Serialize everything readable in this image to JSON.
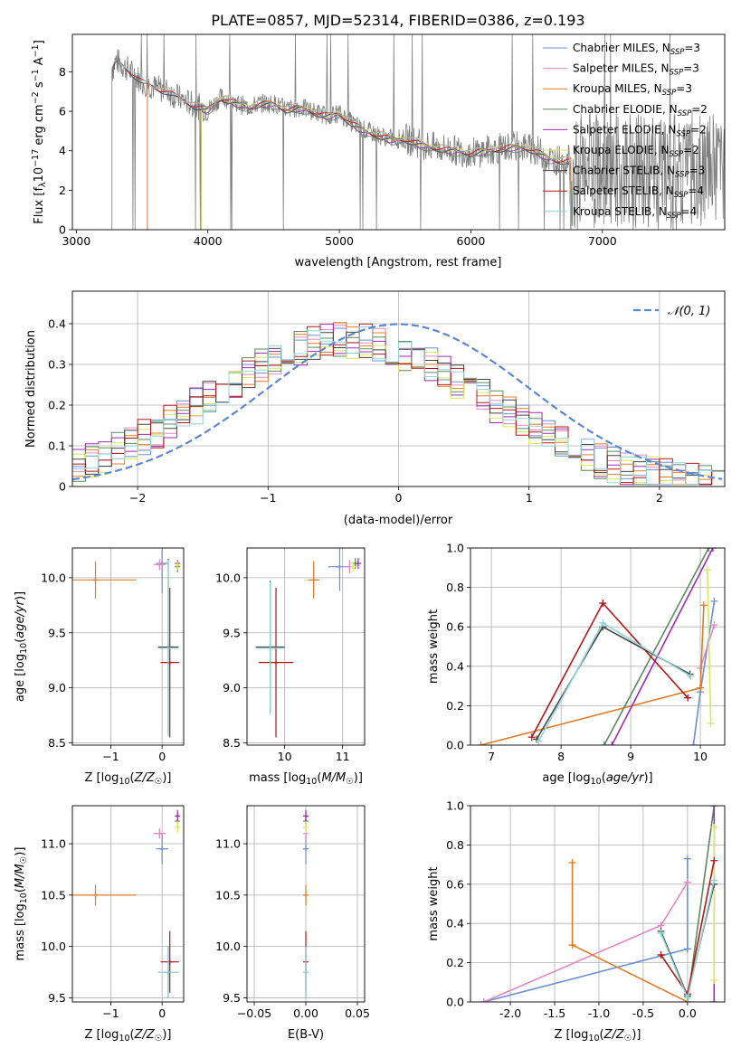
{
  "title": "PLATE=0857, MJD=52314, FIBERID=0386, z=0.193",
  "colors": {
    "Chabrier MILES": "#6a8fd6",
    "Salpeter MILES": "#e488c0",
    "Kroupa MILES": "#e07b28",
    "Chabrier ELODIE": "#5a8a5c",
    "Salpeter ELODIE": "#9c2bb0",
    "Kroupa ELODIE": "#d8e85a",
    "Chabrier STELIB": "#444444",
    "Salpeter STELIB": "#b01818",
    "Kroupa STELIB": "#8fd6d6",
    "data": "#7f7f7f",
    "gauss": "#5b87d6"
  },
  "chart_data": [
    {
      "id": "spectrum",
      "type": "line",
      "xlabel": "wavelength [Angstrom, rest frame]",
      "ylabel": "Flux [f_λ 10^-17 erg cm^-2 s^-1 A^-1]",
      "xlim": [
        2970,
        7930
      ],
      "ylim": [
        0,
        9.9
      ],
      "xticks": [
        3000,
        4000,
        5000,
        6000,
        7000
      ],
      "yticks": [
        0,
        2,
        4,
        6,
        8
      ],
      "legend_position": "top-right",
      "legend": [
        {
          "label": "Chabrier MILES, N_SSP=3",
          "main": "Chabrier MILES, N",
          "sub": "SSP",
          "tail": "=3"
        },
        {
          "label": "Salpeter MILES, N_SSP=3",
          "main": "Salpeter MILES, N",
          "sub": "SSP",
          "tail": "=3"
        },
        {
          "label": "Kroupa MILES, N_SSP=3",
          "main": "Kroupa MILES, N",
          "sub": "SSP",
          "tail": "=3"
        },
        {
          "label": "Chabrier ELODIE, N_SSP=2",
          "main": "Chabrier ELODIE, N",
          "sub": "SSP",
          "tail": "=2"
        },
        {
          "label": "Salpeter ELODIE, N_SSP=2",
          "main": "Salpeter ELODIE, N",
          "sub": "SSP",
          "tail": "=2"
        },
        {
          "label": "Kroupa ELODIE, N_SSP=2",
          "main": "Kroupa ELODIE, N",
          "sub": "SSP",
          "tail": "=2"
        },
        {
          "label": "Chabrier STELIB, N_SSP=3",
          "main": "Chabrier STELIB, N",
          "sub": "SSP",
          "tail": "=3"
        },
        {
          "label": "Salpeter STELIB, N_SSP=4",
          "main": "Salpeter STELIB, N",
          "sub": "SSP",
          "tail": "=4"
        },
        {
          "label": "Kroupa STELIB, N_SSP=4",
          "main": "Kroupa STELIB, N",
          "sub": "SSP",
          "tail": "=4"
        }
      ],
      "model_continuum_x": [
        3270,
        3300,
        3400,
        3500,
        3600,
        3700,
        3800,
        3900,
        4000,
        4100,
        4200,
        4300,
        4400,
        4500,
        4600,
        4700,
        4800,
        4900,
        5000,
        5100,
        5200,
        5300,
        5400,
        5500,
        5600,
        5700,
        5800,
        5900,
        6000,
        6100,
        6200,
        6300,
        6400,
        6500,
        6600,
        6700,
        6760
      ],
      "model_continuum_y": [
        8.0,
        8.6,
        8.1,
        7.5,
        7.2,
        7.0,
        6.6,
        6.3,
        6.1,
        6.7,
        6.5,
        6.2,
        6.4,
        6.4,
        6.1,
        6.2,
        6.0,
        5.8,
        5.9,
        5.4,
        5.0,
        4.8,
        4.6,
        4.6,
        4.4,
        4.2,
        4.1,
        4.0,
        3.9,
        4.0,
        4.1,
        4.2,
        4.2,
        4.0,
        3.6,
        3.5,
        3.5
      ],
      "model_start_x": {
        "MILES": 3540,
        "ELODIE": 3950,
        "STELIB": 3270
      }
    },
    {
      "id": "residual_hist",
      "type": "histogram",
      "xlabel": "(data-model)/error",
      "ylabel": "Normed distribution",
      "xlim": [
        -2.5,
        2.5
      ],
      "ylim": [
        0,
        0.48
      ],
      "xticks": [
        -2,
        -1,
        0,
        1,
        2
      ],
      "yticks": [
        0.0,
        0.1,
        0.2,
        0.3,
        0.4
      ],
      "legend_position": "top-right",
      "gauss_label": "N(0,1)",
      "gauss_label_main": "𝒩(0, 1)",
      "envelope_mean": -0.4,
      "envelope_sigma": 1.05,
      "envelope_peak": 0.36
    },
    {
      "id": "age_vs_Z",
      "type": "scatter",
      "xlabel": "Z [log10(Z/Z☉)]",
      "ylabel": "age [log10(age/yr)]",
      "xlim": [
        -1.75,
        0.42
      ],
      "ylim": [
        8.48,
        10.27
      ],
      "xticks": [
        -1,
        0
      ],
      "yticks": [
        8.5,
        9.0,
        9.5,
        10.0
      ],
      "points": [
        {
          "model": "Chabrier MILES",
          "x": 0.0,
          "y": 10.13,
          "xerr": 0.12,
          "yerr": 0.27
        },
        {
          "model": "Salpeter MILES",
          "x": -0.05,
          "y": 10.12,
          "xerr": 0.12,
          "yerr": 0.05
        },
        {
          "model": "Kroupa MILES",
          "x": -1.3,
          "y": 9.98,
          "xerr": 0.8,
          "yerr": 0.17
        },
        {
          "model": "Chabrier ELODIE",
          "x": 0.3,
          "y": 10.1,
          "xerr": 0.03,
          "yerr": 0.05
        },
        {
          "model": "Salpeter ELODIE",
          "x": 0.3,
          "y": 10.13,
          "xerr": 0.03,
          "yerr": 0.03
        },
        {
          "model": "Kroupa ELODIE",
          "x": 0.3,
          "y": 10.11,
          "xerr": 0.03,
          "yerr": 0.04
        },
        {
          "model": "Chabrier STELIB",
          "x": 0.12,
          "y": 9.37,
          "xerr": 0.2,
          "yerr": 0.8
        },
        {
          "model": "Salpeter STELIB",
          "x": 0.15,
          "y": 9.23,
          "xerr": 0.18,
          "yerr": 0.68
        },
        {
          "model": "Kroupa STELIB",
          "x": 0.12,
          "y": 9.36,
          "xerr": 0.2,
          "yerr": 0.8
        }
      ]
    },
    {
      "id": "age_vs_mass",
      "type": "scatter",
      "xlabel": "mass [log10(M/M☉)]",
      "ylabel": "",
      "xlim": [
        9.35,
        11.38
      ],
      "ylim": [
        8.48,
        10.27
      ],
      "xticks": [
        10,
        11
      ],
      "yticks": [
        8.5,
        9.0,
        9.5,
        10.0
      ],
      "points": [
        {
          "model": "Chabrier MILES",
          "x": 10.95,
          "y": 10.1,
          "xerr": 0.2,
          "yerr": 0.22
        },
        {
          "model": "Salpeter MILES",
          "x": 11.12,
          "y": 10.1,
          "xerr": 0.12,
          "yerr": 0.06
        },
        {
          "model": "Kroupa MILES",
          "x": 10.5,
          "y": 9.98,
          "xerr": 0.1,
          "yerr": 0.17
        },
        {
          "model": "Chabrier ELODIE",
          "x": 11.22,
          "y": 10.13,
          "xerr": 0.05,
          "yerr": 0.05
        },
        {
          "model": "Salpeter ELODIE",
          "x": 11.27,
          "y": 10.13,
          "xerr": 0.05,
          "yerr": 0.05
        },
        {
          "model": "Kroupa ELODIE",
          "x": 11.18,
          "y": 10.1,
          "xerr": 0.05,
          "yerr": 0.05
        },
        {
          "model": "Chabrier STELIB",
          "x": 9.75,
          "y": 9.37,
          "xerr": 0.25,
          "yerr": 0.6
        },
        {
          "model": "Salpeter STELIB",
          "x": 9.85,
          "y": 9.23,
          "xerr": 0.3,
          "yerr": 0.68
        },
        {
          "model": "Kroupa STELIB",
          "x": 9.75,
          "y": 9.36,
          "xerr": 0.25,
          "yerr": 0.6
        }
      ]
    },
    {
      "id": "massweight_vs_age",
      "type": "line",
      "xlabel": "age [log10(age/yr)]",
      "ylabel": "mass weight",
      "xlim": [
        6.7,
        10.35
      ],
      "ylim": [
        0,
        1.0
      ],
      "xticks": [
        7,
        8,
        9,
        10
      ],
      "yticks": [
        0.0,
        0.2,
        0.4,
        0.6,
        0.8,
        1.0
      ],
      "series": [
        {
          "model": "Chabrier MILES",
          "x": [
            9.9,
            10.0,
            10.2
          ],
          "y": [
            0.0,
            0.27,
            0.73
          ]
        },
        {
          "model": "Salpeter MILES",
          "x": [
            10.0,
            10.2
          ],
          "y": [
            0.39,
            0.61
          ]
        },
        {
          "model": "Kroupa MILES",
          "x": [
            6.85,
            10.0,
            10.0,
            10.05
          ],
          "y": [
            0.0,
            0.29,
            0.29,
            0.71
          ]
        },
        {
          "model": "Chabrier ELODIE",
          "x": [
            8.62,
            10.12
          ],
          "y": [
            0.0,
            1.0
          ]
        },
        {
          "model": "Salpeter ELODIE",
          "x": [
            8.73,
            10.18
          ],
          "y": [
            0.0,
            1.0
          ]
        },
        {
          "model": "Kroupa ELODIE",
          "x": [
            10.1,
            10.15
          ],
          "y": [
            0.89,
            0.11
          ]
        },
        {
          "model": "Chabrier STELIB",
          "x": [
            7.65,
            8.6,
            9.85
          ],
          "y": [
            0.03,
            0.6,
            0.36
          ]
        },
        {
          "model": "Salpeter STELIB",
          "x": [
            7.58,
            8.6,
            9.82
          ],
          "y": [
            0.04,
            0.72,
            0.24
          ]
        },
        {
          "model": "Kroupa STELIB",
          "x": [
            7.68,
            8.6,
            9.86
          ],
          "y": [
            0.02,
            0.62,
            0.35
          ]
        }
      ]
    },
    {
      "id": "mass_vs_Z",
      "type": "scatter",
      "xlabel": "Z [log10(Z/Z☉)]",
      "ylabel": "mass [log10(M/M☉)]",
      "xlim": [
        -1.75,
        0.42
      ],
      "ylim": [
        9.46,
        11.37
      ],
      "xticks": [
        -1,
        0
      ],
      "yticks": [
        9.5,
        10.0,
        10.5,
        11.0
      ],
      "points": [
        {
          "model": "Chabrier MILES",
          "x": 0.0,
          "y": 10.95,
          "xerr": 0.12,
          "yerr": 0.15
        },
        {
          "model": "Salpeter MILES",
          "x": -0.05,
          "y": 11.1,
          "xerr": 0.12,
          "yerr": 0.05
        },
        {
          "model": "Kroupa MILES",
          "x": -1.3,
          "y": 10.5,
          "xerr": 0.8,
          "yerr": 0.1
        },
        {
          "model": "Chabrier ELODIE",
          "x": 0.3,
          "y": 11.22,
          "xerr": 0.03,
          "yerr": 0.06
        },
        {
          "model": "Salpeter ELODIE",
          "x": 0.3,
          "y": 11.27,
          "xerr": 0.03,
          "yerr": 0.06
        },
        {
          "model": "Kroupa ELODIE",
          "x": 0.3,
          "y": 11.16,
          "xerr": 0.03,
          "yerr": 0.06
        },
        {
          "model": "Chabrier STELIB",
          "x": 0.12,
          "y": 9.75,
          "xerr": 0.2,
          "yerr": 0.25
        },
        {
          "model": "Salpeter STELIB",
          "x": 0.15,
          "y": 9.85,
          "xerr": 0.18,
          "yerr": 0.3
        },
        {
          "model": "Kroupa STELIB",
          "x": 0.12,
          "y": 9.75,
          "xerr": 0.2,
          "yerr": 0.25
        }
      ]
    },
    {
      "id": "mass_vs_ebv",
      "type": "scatter",
      "xlabel": "E(B-V)",
      "ylabel": "",
      "xlim": [
        -0.057,
        0.057
      ],
      "ylim": [
        9.46,
        11.37
      ],
      "xticks": [
        -0.05,
        0.0,
        0.05
      ],
      "xtick_labels": [
        "−0.05",
        "0.00",
        "0.05"
      ],
      "yticks": [
        9.5,
        10.0,
        10.5,
        11.0
      ],
      "points": [
        {
          "model": "Chabrier MILES",
          "x": 0.0,
          "y": 10.95,
          "yerr": 0.15
        },
        {
          "model": "Salpeter MILES",
          "x": 0.0,
          "y": 11.1,
          "yerr": 0.05
        },
        {
          "model": "Kroupa MILES",
          "x": 0.0,
          "y": 10.5,
          "yerr": 0.1
        },
        {
          "model": "Chabrier ELODIE",
          "x": 0.0,
          "y": 11.22,
          "yerr": 0.06
        },
        {
          "model": "Salpeter ELODIE",
          "x": 0.0,
          "y": 11.27,
          "yerr": 0.06
        },
        {
          "model": "Kroupa ELODIE",
          "x": 0.0,
          "y": 11.16,
          "yerr": 0.06
        },
        {
          "model": "Chabrier STELIB",
          "x": 0.0,
          "y": 9.75,
          "yerr": 0.25
        },
        {
          "model": "Salpeter STELIB",
          "x": 0.0,
          "y": 9.85,
          "yerr": 0.3
        },
        {
          "model": "Kroupa STELIB",
          "x": 0.0,
          "y": 9.75,
          "yerr": 0.25
        }
      ]
    },
    {
      "id": "massweight_vs_Z",
      "type": "line",
      "xlabel": "Z [log10(Z/Z☉)]",
      "ylabel": "mass weight",
      "xlim": [
        -2.45,
        0.42
      ],
      "ylim": [
        0,
        1.0
      ],
      "xticks": [
        -2.0,
        -1.5,
        -1.0,
        -0.5,
        0.0
      ],
      "yticks": [
        0.0,
        0.2,
        0.4,
        0.6,
        0.8,
        1.0
      ],
      "series": [
        {
          "model": "Chabrier MILES",
          "x": [
            -2.3,
            0.0,
            0.0,
            0.0
          ],
          "y": [
            0.0,
            0.27,
            0.27,
            0.73
          ]
        },
        {
          "model": "Salpeter MILES",
          "x": [
            -2.3,
            -0.3,
            0.0,
            0.0
          ],
          "y": [
            0.0,
            0.39,
            0.61,
            0.61
          ]
        },
        {
          "model": "Kroupa MILES",
          "x": [
            -1.3,
            -1.3,
            0.0
          ],
          "y": [
            0.71,
            0.29,
            0.0
          ]
        },
        {
          "model": "Chabrier ELODIE",
          "x": [
            0.0,
            0.3
          ],
          "y": [
            0.0,
            1.0
          ]
        },
        {
          "model": "Salpeter ELODIE",
          "x": [
            0.3,
            0.3
          ],
          "y": [
            0.0,
            1.0
          ]
        },
        {
          "model": "Kroupa ELODIE",
          "x": [
            0.3,
            0.3
          ],
          "y": [
            0.11,
            0.89
          ]
        },
        {
          "model": "Chabrier STELIB",
          "x": [
            -0.3,
            0.0,
            0.3
          ],
          "y": [
            0.36,
            0.03,
            0.6
          ]
        },
        {
          "model": "Salpeter STELIB",
          "x": [
            -0.3,
            0.0,
            0.3
          ],
          "y": [
            0.24,
            0.04,
            0.72
          ]
        },
        {
          "model": "Kroupa STELIB",
          "x": [
            -0.3,
            0.0,
            0.3
          ],
          "y": [
            0.35,
            0.02,
            0.62
          ]
        }
      ]
    }
  ]
}
